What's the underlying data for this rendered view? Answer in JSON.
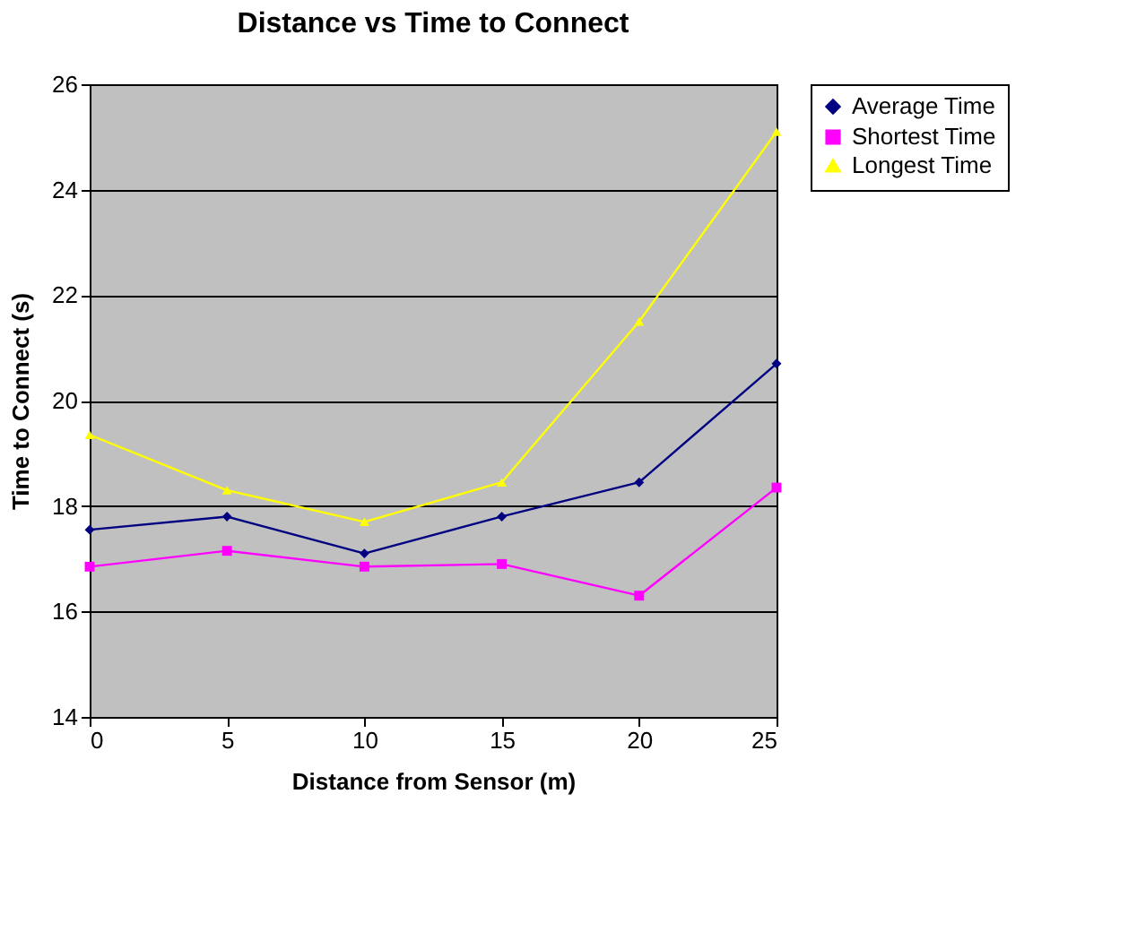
{
  "chart_data": {
    "type": "line",
    "title": "Distance vs Time to Connect",
    "xlabel": "Distance from Sensor (m)",
    "ylabel": "Time to Connect (s)",
    "x": [
      0,
      5,
      10,
      15,
      20,
      25
    ],
    "series": [
      {
        "name": "Average Time",
        "color": "#000080",
        "marker": "diamond",
        "values": [
          17.55,
          17.8,
          17.1,
          17.8,
          18.45,
          20.7
        ]
      },
      {
        "name": "Shortest Time",
        "color": "#ff00ff",
        "marker": "square",
        "values": [
          16.85,
          17.15,
          16.85,
          16.9,
          16.3,
          18.35
        ]
      },
      {
        "name": "Longest Time",
        "color": "#ffff00",
        "marker": "triangle",
        "values": [
          19.35,
          18.3,
          17.7,
          18.45,
          21.5,
          25.1
        ]
      }
    ],
    "xlim": [
      0,
      25
    ],
    "xticks": [
      0,
      5,
      10,
      15,
      20,
      25
    ],
    "ylim": [
      14,
      26
    ],
    "yticks": [
      14,
      16,
      18,
      20,
      22,
      24,
      26
    ],
    "grid": "y",
    "legend": "right",
    "line_style": "solid"
  }
}
